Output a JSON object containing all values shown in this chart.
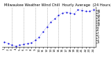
{
  "title": "Milwaukee Weather Wind Chill  Hourly Average  (24 Hours)",
  "x_hours": [
    1,
    2,
    3,
    4,
    5,
    6,
    7,
    8,
    9,
    10,
    11,
    12,
    13,
    14,
    15,
    16,
    17,
    18,
    19,
    20,
    21,
    22,
    23,
    24
  ],
  "y_values": [
    -8,
    -10,
    -12,
    -13,
    -12,
    -11,
    -10,
    -9,
    -6,
    -2,
    4,
    10,
    16,
    20,
    24,
    27,
    28,
    27,
    26,
    31,
    30,
    29,
    29,
    31
  ],
  "line_color": "#0000dd",
  "bg_color": "#ffffff",
  "grid_color": "#888888",
  "ylim": [
    -14,
    34
  ],
  "yticks": [
    -9,
    -6,
    -3,
    0,
    3,
    6,
    9,
    12,
    15,
    18,
    21,
    24,
    27,
    30
  ],
  "vlines": [
    3,
    6,
    9,
    12,
    15,
    18,
    21,
    24
  ],
  "title_fontsize": 3.8,
  "tick_fontsize": 3.0
}
